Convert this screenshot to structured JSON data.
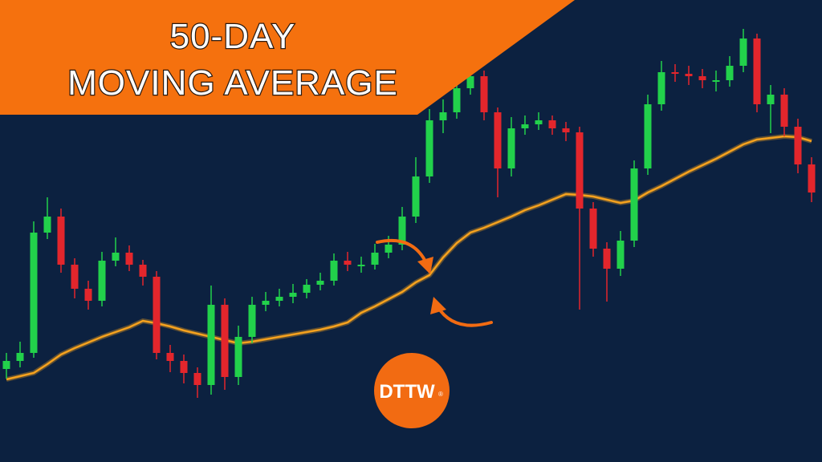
{
  "chart_data": {
    "type": "candlestick",
    "title_lines": [
      "50-DAY",
      "MOVING AVERAGE"
    ],
    "logo": "DTTW",
    "logo_mark": "®",
    "ylim": [
      0,
      576
    ],
    "up_color": "#22d14b",
    "down_color": "#e3262c",
    "open": [
      116,
      126,
      136,
      286,
      306,
      246,
      216,
      201,
      251,
      261,
      246,
      231,
      136,
      126,
      111,
      96,
      196,
      106,
      156,
      196,
      201,
      206,
      211,
      221,
      226,
      251,
      246,
      246,
      261,
      271,
      306,
      356,
      426,
      436,
      466,
      481,
      436,
      366,
      416,
      421,
      426,
      416,
      411,
      316,
      266,
      241,
      276,
      366,
      446,
      486,
      484,
      481,
      476,
      476,
      494,
      528,
      446,
      458,
      418,
      371
    ],
    "high": [
      136,
      150,
      300,
      330,
      316,
      254,
      226,
      262,
      280,
      270,
      252,
      238,
      146,
      134,
      118,
      220,
      204,
      170,
      206,
      212,
      216,
      222,
      228,
      236,
      260,
      262,
      256,
      272,
      282,
      318,
      380,
      440,
      452,
      478,
      492,
      488,
      442,
      430,
      432,
      436,
      432,
      424,
      418,
      324,
      274,
      288,
      376,
      458,
      500,
      496,
      494,
      490,
      488,
      506,
      540,
      534,
      470,
      466,
      428,
      380
    ],
    "low": [
      104,
      118,
      130,
      278,
      236,
      204,
      190,
      194,
      244,
      238,
      220,
      128,
      112,
      98,
      80,
      84,
      90,
      96,
      148,
      188,
      194,
      198,
      204,
      214,
      220,
      238,
      236,
      240,
      254,
      264,
      298,
      348,
      410,
      428,
      458,
      426,
      330,
      356,
      408,
      414,
      408,
      400,
      190,
      256,
      200,
      232,
      268,
      358,
      438,
      474,
      470,
      466,
      462,
      468,
      486,
      436,
      410,
      406,
      360,
      324
    ],
    "close": [
      126,
      136,
      286,
      306,
      246,
      216,
      201,
      251,
      261,
      246,
      231,
      136,
      126,
      111,
      96,
      196,
      106,
      156,
      196,
      201,
      206,
      211,
      221,
      226,
      251,
      246,
      246,
      261,
      271,
      306,
      356,
      426,
      436,
      466,
      481,
      436,
      366,
      416,
      421,
      426,
      416,
      411,
      316,
      266,
      241,
      276,
      366,
      446,
      486,
      484,
      481,
      476,
      476,
      494,
      528,
      446,
      458,
      418,
      371,
      336
    ],
    "moving_average": {
      "color": "#f6a21e",
      "values": [
        103,
        107,
        111,
        122,
        134,
        142,
        149,
        156,
        162,
        168,
        176,
        173,
        169,
        164,
        160,
        156,
        152,
        148,
        150,
        153,
        156,
        159,
        162,
        165,
        169,
        174,
        186,
        194,
        203,
        212,
        224,
        233,
        255,
        273,
        286,
        292,
        299,
        306,
        314,
        320,
        327,
        334,
        333,
        331,
        327,
        323,
        326,
        336,
        344,
        353,
        362,
        370,
        378,
        387,
        396,
        402,
        404,
        406,
        405,
        400
      ]
    }
  }
}
